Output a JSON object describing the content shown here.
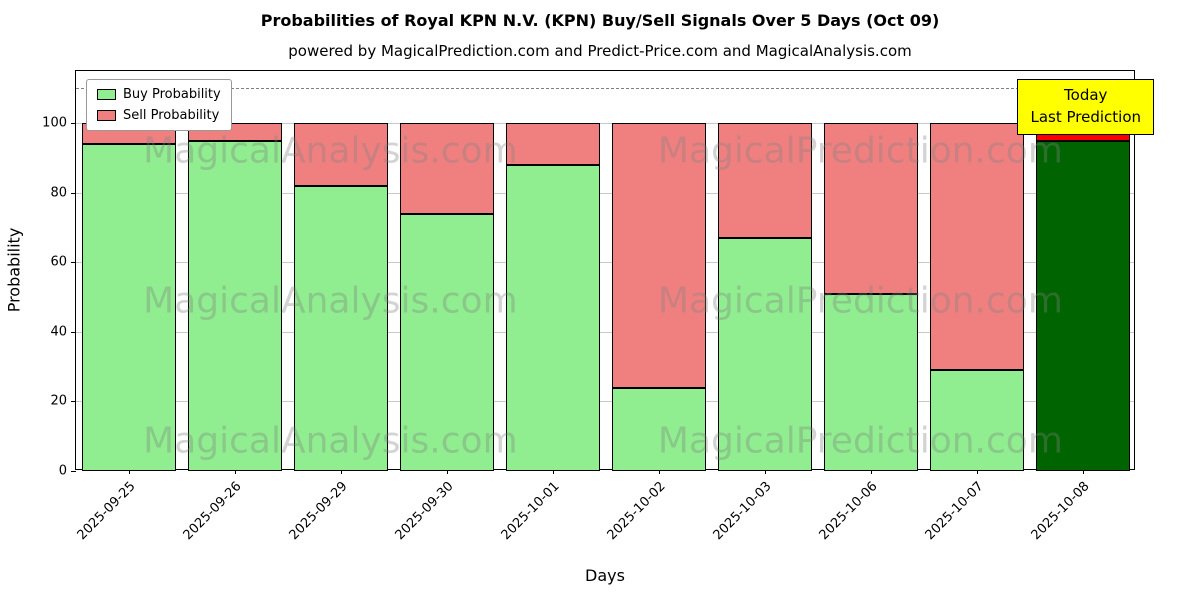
{
  "chart": {
    "title": "Probabilities of Royal KPN N.V. (KPN) Buy/Sell Signals Over 5 Days (Oct 09)",
    "subtitle": "powered by MagicalPrediction.com and Predict-Price.com and MagicalAnalysis.com",
    "xlabel": "Days",
    "ylabel": "Probability",
    "annotation_line1": "Today",
    "annotation_line2": "Last Prediction",
    "legend": {
      "buy_label": "Buy Probability",
      "sell_label": "Sell Probability"
    },
    "colors": {
      "buy": "#90EE90",
      "sell": "#F08080",
      "today_buy": "#006400",
      "today_sell": "#FF0000",
      "annotation_bg": "#FFFF00",
      "grid": "#C8C8C8",
      "dashed_line": "#7F7F7F"
    },
    "watermark_left": "MagicalAnalysis.com",
    "watermark_right": "MagicalPrediction.com"
  },
  "chart_data": {
    "type": "bar",
    "stacked": true,
    "title": "Probabilities of Royal KPN N.V. (KPN) Buy/Sell Signals Over 5 Days (Oct 09)",
    "xlabel": "Days",
    "ylabel": "Probability",
    "categories": [
      "2025-09-25",
      "2025-09-26",
      "2025-09-29",
      "2025-09-30",
      "2025-10-01",
      "2025-10-02",
      "2025-10-03",
      "2025-10-06",
      "2025-10-07",
      "2025-10-08"
    ],
    "series": [
      {
        "name": "Buy Probability",
        "values": [
          94,
          95,
          82,
          74,
          88,
          24,
          67,
          51,
          29,
          95
        ]
      },
      {
        "name": "Sell Probability",
        "values": [
          6,
          5,
          18,
          26,
          12,
          76,
          33,
          49,
          71,
          5
        ]
      }
    ],
    "ylim": [
      0,
      115
    ],
    "yticks": [
      0,
      20,
      40,
      60,
      80,
      100
    ],
    "dashed_line_y": 110,
    "grid": true,
    "legend_position": "upper left",
    "today_index": 9
  }
}
